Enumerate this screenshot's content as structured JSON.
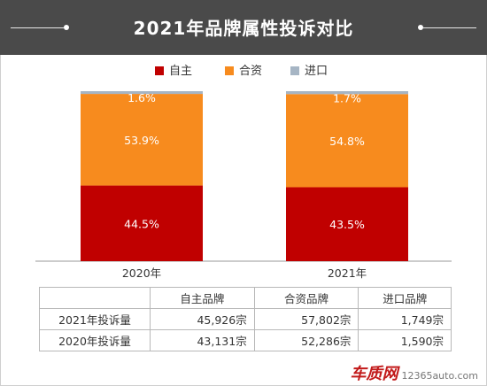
{
  "header": {
    "title": "2021年品牌属性投诉对比"
  },
  "colors": {
    "domestic": "#c00000",
    "joint": "#f78b1e",
    "imported": "#a6b5c4",
    "header_bg": "#4a4a4a"
  },
  "chart_data": {
    "type": "bar",
    "stacked": true,
    "percent": true,
    "categories": [
      "2020年",
      "2021年"
    ],
    "series": [
      {
        "name": "自主",
        "values": [
          44.5,
          43.5
        ],
        "labels": [
          "44.5%",
          "43.5%"
        ]
      },
      {
        "name": "合资",
        "values": [
          53.9,
          54.8
        ],
        "labels": [
          "53.9%",
          "54.8%"
        ]
      },
      {
        "name": "进口",
        "values": [
          1.6,
          1.7
        ],
        "labels": [
          "1.6%",
          "1.7%"
        ]
      }
    ],
    "ylim": [
      0,
      100
    ],
    "legend": "top-center",
    "grid": false
  },
  "table": {
    "headers": [
      "",
      "自主品牌",
      "合资品牌",
      "进口品牌"
    ],
    "rows": [
      {
        "label": "2021年投诉量",
        "cells": [
          "45,926宗",
          "57,802宗",
          "1,749宗"
        ]
      },
      {
        "label": "2020年投诉量",
        "cells": [
          "43,131宗",
          "52,286宗",
          "1,590宗"
        ]
      }
    ]
  },
  "watermark": {
    "brand": "车质网",
    "site": "12365auto.com"
  }
}
